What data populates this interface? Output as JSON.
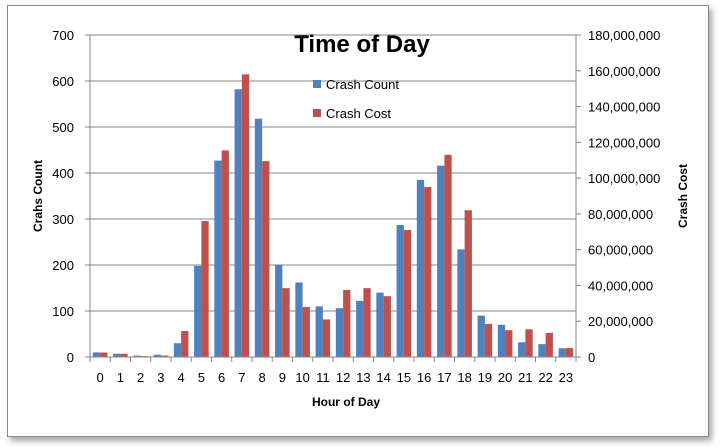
{
  "chart_data": {
    "type": "bar",
    "title": "Time of Day",
    "xlabel": "Hour of Day",
    "ylabel": "Crahs Count",
    "y2label": "Crash Cost",
    "categories": [
      "0",
      "1",
      "2",
      "3",
      "4",
      "5",
      "6",
      "7",
      "8",
      "9",
      "10",
      "11",
      "12",
      "13",
      "14",
      "15",
      "16",
      "17",
      "18",
      "19",
      "20",
      "21",
      "22",
      "23"
    ],
    "ylim": [
      0,
      700
    ],
    "y_ticks": [
      0,
      100,
      200,
      300,
      400,
      500,
      600,
      700
    ],
    "y_tick_labels": [
      "0",
      "100",
      "200",
      "300",
      "400",
      "500",
      "600",
      "700"
    ],
    "y2lim": [
      0,
      180000000
    ],
    "y2_ticks": [
      0,
      20000000,
      40000000,
      60000000,
      80000000,
      100000000,
      120000000,
      140000000,
      160000000,
      180000000
    ],
    "y2_tick_labels": [
      "0",
      "20,000,000",
      "40,000,000",
      "60,000,000",
      "80,000,000",
      "100,000,000",
      "120,000,000",
      "140,000,000",
      "160,000,000",
      "180,000,000"
    ],
    "grid": true,
    "legend_position": "top-center",
    "series": [
      {
        "name": "Crash Count",
        "axis": "left",
        "color": "#4f81bd",
        "values": [
          10,
          7,
          3,
          5,
          30,
          198,
          427,
          582,
          518,
          200,
          162,
          110,
          106,
          122,
          140,
          287,
          385,
          416,
          234,
          90,
          70,
          32,
          28,
          19
        ]
      },
      {
        "name": "Crash Cost",
        "axis": "right",
        "color": "#c0504d",
        "values": [
          2500000,
          1800000,
          500000,
          800000,
          14500000,
          76000000,
          115500000,
          158000000,
          109500000,
          38500000,
          28000000,
          21000000,
          37500000,
          38500000,
          34000000,
          71000000,
          95000000,
          113000000,
          82000000,
          18500000,
          15000000,
          15500000,
          13500000,
          5000000
        ]
      }
    ]
  }
}
